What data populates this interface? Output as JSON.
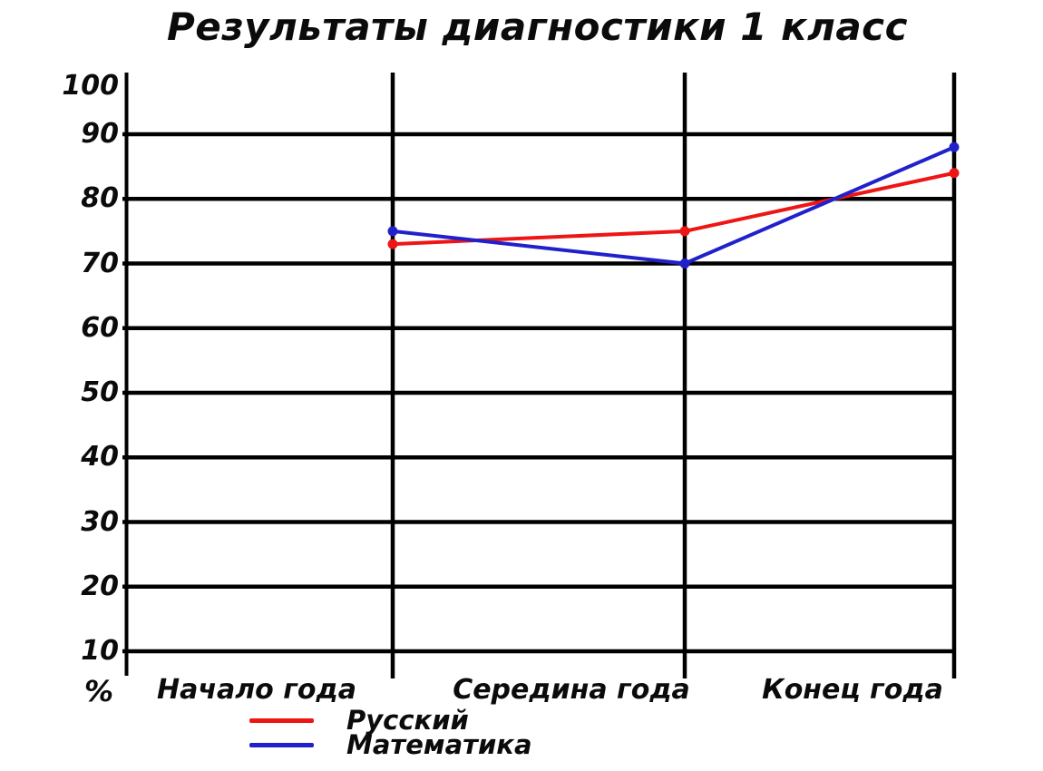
{
  "chart_data": {
    "type": "line",
    "title": "Результаты диагностики 1 класс",
    "categories": [
      "Начало года",
      "Середина года",
      "Конец года"
    ],
    "series": [
      {
        "name": "Русский",
        "color": "#ee1515",
        "values": [
          73,
          75,
          84
        ]
      },
      {
        "name": "Математика",
        "color": "#2121cc",
        "values": [
          75,
          70,
          88
        ]
      }
    ],
    "y_ticks": [
      100,
      90,
      80,
      70,
      60,
      50,
      40,
      30,
      20,
      10
    ],
    "y_unit_label": "%",
    "ylim": [
      0,
      100
    ],
    "grid": "horizontal rows with vertical category lines",
    "grid_color": "#000000",
    "legend_position": "bottom-left",
    "marker": "circle"
  }
}
